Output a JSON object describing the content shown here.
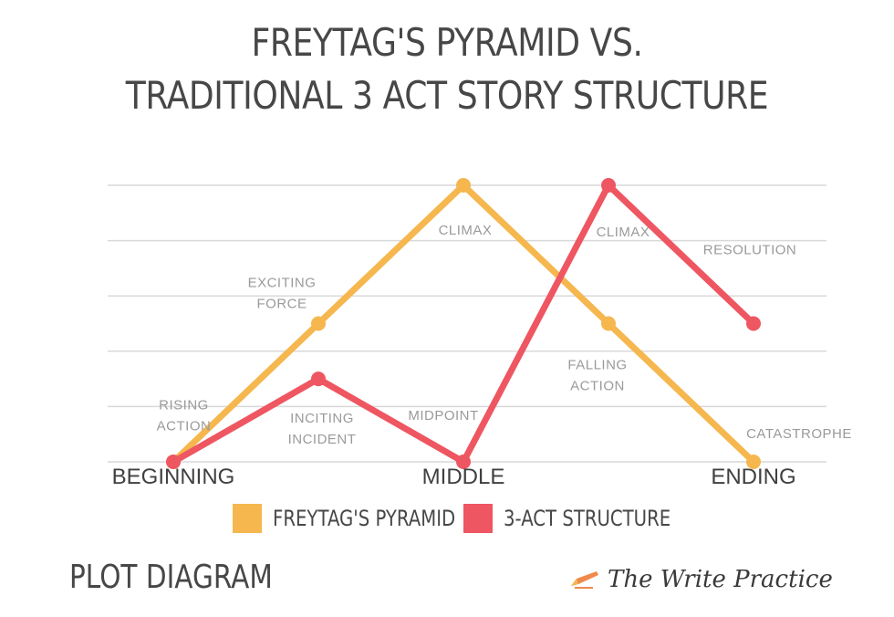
{
  "title_lines": [
    "FREYTAG'S PYRAMID VS.",
    "TRADITIONAL 3 ACT STORY STRUCTURE"
  ],
  "footer_label": "PLOT DIAGRAM",
  "logo_text": "The Write Practice",
  "colors": {
    "freytag": "#F5B74E",
    "three_act": "#EE5661",
    "grid": "#d9d9d9",
    "text_dark": "#474747",
    "label_gray": "#9a9a9a"
  },
  "chart_data": {
    "type": "line",
    "x_ticks": [
      {
        "x": 0,
        "label": "BEGINNING"
      },
      {
        "x": 2,
        "label": "MIDDLE"
      },
      {
        "x": 4,
        "label": "ENDING"
      }
    ],
    "xlim": [
      0,
      4
    ],
    "ylim": [
      0,
      5
    ],
    "grid": "horizontal",
    "legend_position": "bottom",
    "series": [
      {
        "name": "FREYTAG'S PYRAMID",
        "color": "#F5B74E",
        "points": [
          {
            "x": 0,
            "y": 0
          },
          {
            "x": 1,
            "y": 2.5,
            "label": [
              "EXCITING",
              "FORCE"
            ]
          },
          {
            "x": 2,
            "y": 5,
            "label": [
              "CLIMAX"
            ]
          },
          {
            "x": 3,
            "y": 2.5,
            "label": [
              "FALLING",
              "ACTION"
            ]
          },
          {
            "x": 4,
            "y": 0,
            "label": [
              "CATASTROPHE"
            ]
          }
        ],
        "segment_labels": [
          {
            "after_point": 0,
            "label": [
              "RISING",
              "ACTION"
            ]
          }
        ]
      },
      {
        "name": "3-ACT STRUCTURE",
        "color": "#EE5661",
        "points": [
          {
            "x": 0,
            "y": 0
          },
          {
            "x": 1,
            "y": 1.5,
            "label": [
              "INCITING",
              "INCIDENT"
            ]
          },
          {
            "x": 2,
            "y": 0,
            "label": [
              "MIDPOINT"
            ]
          },
          {
            "x": 3,
            "y": 5,
            "label": [
              "CLIMAX"
            ]
          },
          {
            "x": 4,
            "y": 2.5,
            "label": [
              "RESOLUTION"
            ]
          }
        ]
      }
    ]
  }
}
